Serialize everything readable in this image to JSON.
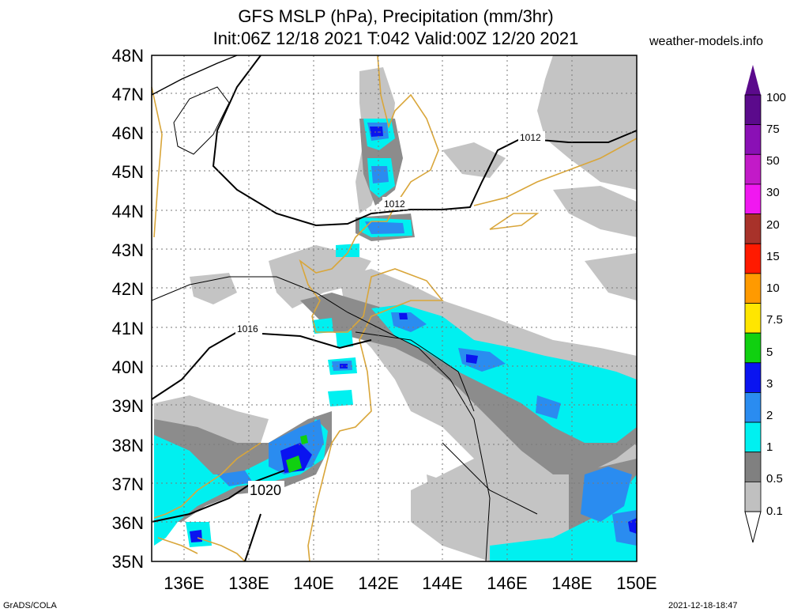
{
  "title_line1": "GFS MSLP (hPa), Precipitation (mm/3hr)",
  "title_line2": "Init:06Z 12/18 2021 T:042 Valid:00Z 12/20 2021",
  "site": "weather-models.info",
  "footer_left": "GrADS/COLA",
  "footer_right": "2021-12-18-18:47",
  "lat_labels": [
    "48N",
    "47N",
    "46N",
    "45N",
    "44N",
    "43N",
    "42N",
    "41N",
    "40N",
    "39N",
    "38N",
    "37N",
    "36N",
    "35N"
  ],
  "lon_labels": [
    "136E",
    "138E",
    "140E",
    "142E",
    "144E",
    "146E",
    "148E",
    "150E"
  ],
  "isobar_labels": [
    "1012",
    "1012",
    "1016",
    "1020"
  ],
  "legend": {
    "labels": [
      "100",
      "75",
      "50",
      "30",
      "20",
      "15",
      "10",
      "7.5",
      "5",
      "3",
      "2",
      "1",
      "0.5",
      "0.1"
    ],
    "colors": [
      "#5b0a8c",
      "#8a10b5",
      "#c21ac8",
      "#f018f0",
      "#a8322a",
      "#ff1a00",
      "#ff9a00",
      "#ffe600",
      "#10d010",
      "#0a14f0",
      "#2a8cf0",
      "#00f0f0",
      "#808080",
      "#c0c0c0"
    ]
  },
  "colors": {
    "coastline": "#d9a63a",
    "land_light": "#c6c6c6",
    "land_dark": "#8a8a8a"
  }
}
